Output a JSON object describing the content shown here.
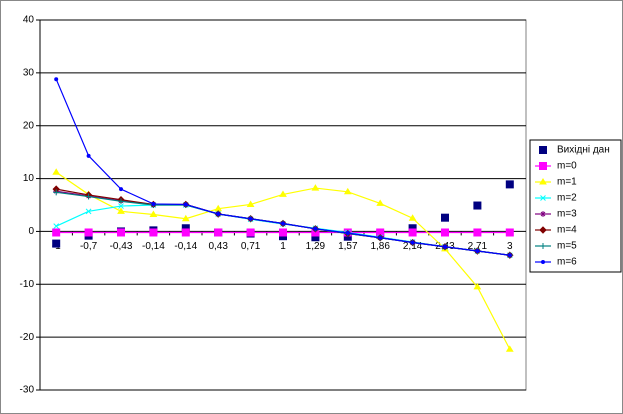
{
  "chart_data": {
    "type": "line",
    "categories": [
      "-1",
      "-0,7",
      "-0,43",
      "-0,14",
      "-0,14",
      "0,43",
      "0,71",
      "1",
      "1,29",
      "1,57",
      "1,86",
      "2,14",
      "2,43",
      "2,71",
      "3"
    ],
    "ylim": [
      -30,
      40
    ],
    "yticks": [
      -30,
      -20,
      -10,
      0,
      10,
      20,
      30,
      40
    ],
    "grid": true,
    "legend": "right",
    "series": [
      {
        "name": "Вихідні дан",
        "color": "#000080",
        "marker": "square",
        "line": false,
        "values": [
          -2.3,
          -0.8,
          0,
          0.2,
          0.6,
          -0.2,
          -0.4,
          -0.9,
          -1.1,
          -1,
          -0.6,
          0.6,
          2.6,
          4.9,
          8.9
        ]
      },
      {
        "name": "m=0",
        "color": "#ff00ff",
        "marker": "square",
        "line": true,
        "values": [
          -0.2,
          -0.2,
          -0.2,
          -0.2,
          -0.2,
          -0.2,
          -0.2,
          -0.2,
          -0.2,
          -0.2,
          -0.2,
          -0.2,
          -0.2,
          -0.2,
          -0.2
        ]
      },
      {
        "name": "m=1",
        "color": "#ffff00",
        "marker": "triangle",
        "line": true,
        "values": [
          11.2,
          7,
          3.8,
          3.2,
          2.4,
          4.3,
          5.1,
          7,
          8.2,
          7.5,
          5.3,
          2.5,
          -3.3,
          -10.5,
          -22.3
        ]
      },
      {
        "name": "m=2",
        "color": "#00ffff",
        "marker": "cross",
        "line": true,
        "values": [
          1,
          3.8,
          4.8,
          5,
          5,
          3.3,
          2.3,
          1.4,
          0.6,
          -0.2,
          -1.1,
          -2,
          -2.9,
          -3.7,
          -4.5
        ]
      },
      {
        "name": "m=3",
        "color": "#800080",
        "marker": "star",
        "line": true,
        "values": [
          7.6,
          6.7,
          5.8,
          5.1,
          5.1,
          3.3,
          2.4,
          1.5,
          0.5,
          -0.4,
          -1.2,
          -2.1,
          -2.9,
          -3.7,
          -4.5
        ]
      },
      {
        "name": "m=4",
        "color": "#800000",
        "marker": "diamond",
        "line": true,
        "values": [
          8,
          6.9,
          6,
          5.1,
          5.1,
          3.3,
          2.4,
          1.5,
          0.5,
          -0.4,
          -1.2,
          -2.1,
          -2.9,
          -3.7,
          -4.5
        ]
      },
      {
        "name": "m=5",
        "color": "#008080",
        "marker": "plus",
        "line": true,
        "values": [
          7.4,
          6.6,
          5.7,
          5,
          5,
          3.3,
          2.4,
          1.5,
          0.5,
          -0.4,
          -1.2,
          -2.1,
          -2.9,
          -3.7,
          -4.5
        ]
      },
      {
        "name": "m=6",
        "color": "#0000ff",
        "marker": "dot",
        "line": true,
        "values": [
          28.8,
          14.3,
          8,
          5.2,
          5.1,
          3.3,
          2.4,
          1.5,
          0.5,
          -0.3,
          -1.2,
          -2.1,
          -2.9,
          -3.7,
          -4.5
        ]
      }
    ]
  }
}
